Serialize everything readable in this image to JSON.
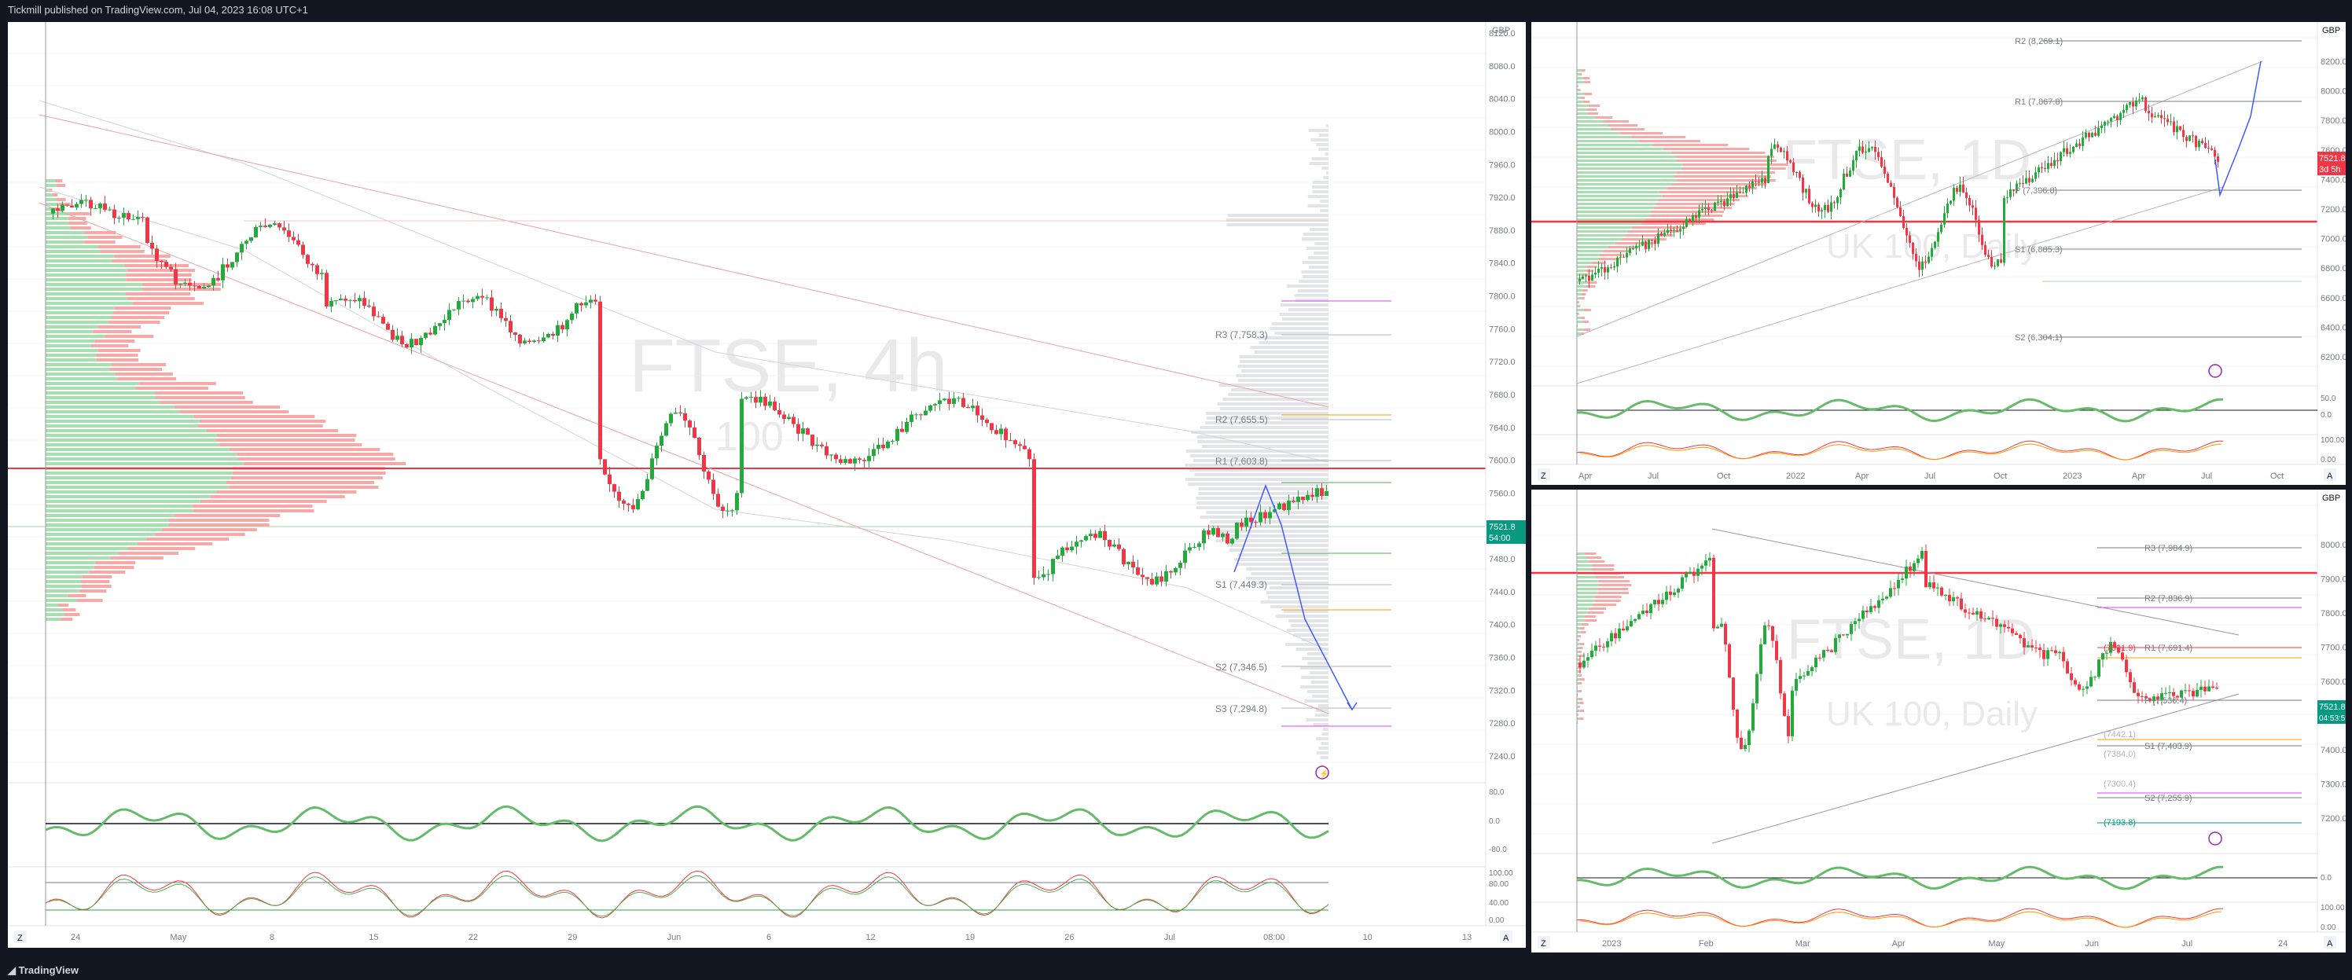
{
  "header": {
    "text": "Tickmill published on TradingView.com, Jul 04, 2023 16:08 UTC+1"
  },
  "footer": {
    "brand": "TradingView"
  },
  "colors": {
    "up": "#22ab3a",
    "down": "#f23645",
    "bg": "#ffffff",
    "watermark": "#e9e9ec",
    "frame": "#131722"
  },
  "main_chart": {
    "currency": "GBP",
    "watermark_title": "FTSE, 4h",
    "watermark_sub": "100",
    "price_ticks": [
      "8120.0",
      "8080.0",
      "8040.0",
      "8000.0",
      "7960.0",
      "7920.0",
      "7880.0",
      "7840.0",
      "7800.0",
      "7760.0",
      "7720.0",
      "7680.0",
      "7640.0",
      "7600.0",
      "7560.0",
      "7520.0",
      "7480.0",
      "7440.0",
      "7400.0",
      "7360.0",
      "7320.0",
      "7280.0",
      "7240.0"
    ],
    "last_price": "7521.8",
    "countdown": "54:00",
    "pivots": {
      "r3": "R3 (7,758.3)",
      "r2": "R2 (7,655.5)",
      "r1": "R1 (7,603.8)",
      "s1": "S1 (7,449.3)",
      "s2": "S2 (7,346.5)",
      "s3": "S3 (7,294.8)"
    },
    "rsi_ticks": [
      "80.0",
      "0.0",
      "-80.0"
    ],
    "stoch_ticks": [
      "100.00",
      "80.00",
      "40.00",
      "0.00"
    ],
    "time_ticks": [
      "24",
      "May",
      "8",
      "15",
      "22",
      "29",
      "Jun",
      "6",
      "12",
      "19",
      "26",
      "Jul",
      "08:00",
      "10",
      "13"
    ],
    "corner_left": "Z",
    "corner_right": "A"
  },
  "top_right_chart": {
    "currency": "GBP",
    "watermark_title": "FTSE, 1D",
    "watermark_sub": "UK 100, Daily",
    "price_ticks": [
      "8200.0",
      "8000.0",
      "7800.0",
      "7600.0",
      "7400.0",
      "7200.0",
      "7000.0",
      "6800.0",
      "6600.0",
      "6400.0",
      "6200.0"
    ],
    "last_price": "7521.8",
    "countdown": "3d 5h",
    "pivots": {
      "r2": "R2 (8,269.1)",
      "r1": "R1 (7,867.8)",
      "p": "P (7,396.8)",
      "s1": "S1 (6,885.3)",
      "s2": "S2 (6,304.1)"
    },
    "rsi_ticks": [
      "50.0",
      "0.0"
    ],
    "stoch_ticks": [
      "100.00",
      "0.00"
    ],
    "time_ticks": [
      "Apr",
      "Jul",
      "Oct",
      "2022",
      "Apr",
      "Jul",
      "Oct",
      "2023",
      "Apr",
      "Jul",
      "Oct"
    ],
    "corner_left": "Z",
    "corner_right": "A"
  },
  "bottom_right_chart": {
    "currency": "GBP",
    "watermark_title": "FTSE, 1D",
    "watermark_sub": "UK 100, Daily",
    "price_ticks": [
      "8000.0",
      "7900.0",
      "7800.0",
      "7700.0",
      "7600.0",
      "7500.0",
      "7400.0",
      "7300.0",
      "7200.0"
    ],
    "last_price": "7521.8",
    "countdown": "04:53:59",
    "pivots": {
      "r3": "R3 (7,984.9)",
      "r2": "R2 (7,836.9)",
      "r1": "R1 (7,691.4)",
      "p": "P (7,536.4)",
      "s1": "S1 (7,403.9)",
      "s2": "S2 (7,255.9)",
      "l1": "(7691.9)",
      "l2": "(7442.1)",
      "l3": "(7384.0)",
      "l4": "(7300.4)",
      "l5": "(7193.8)"
    },
    "rsi_ticks": [
      "0.0"
    ],
    "stoch_ticks": [
      "100.00",
      "0.00"
    ],
    "time_ticks": [
      "2023",
      "Feb",
      "Mar",
      "Apr",
      "May",
      "Jun",
      "Jul",
      "24"
    ],
    "corner_left": "Z",
    "corner_right": "A"
  }
}
